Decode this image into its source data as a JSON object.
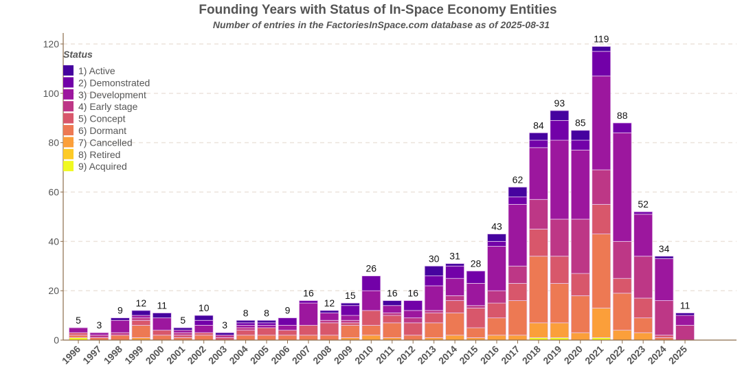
{
  "chart_data": {
    "type": "bar",
    "stacked": true,
    "title": "Founding Years with Status of In-Space Economy Entities",
    "subtitle": "Number of entries in the FactoriesInSpace.com database as of 2025-08-31",
    "xlabel": "",
    "ylabel": "",
    "ylim": [
      0,
      125
    ],
    "yticks": [
      0,
      20,
      40,
      60,
      80,
      100,
      120
    ],
    "grid": true,
    "legend": {
      "title": "Status",
      "placement": "top-left"
    },
    "categories": [
      "1996",
      "1997",
      "1998",
      "1999",
      "2000",
      "2001",
      "2002",
      "2003",
      "2004",
      "2005",
      "2006",
      "2007",
      "2008",
      "2009",
      "2010",
      "2011",
      "2012",
      "2013",
      "2014",
      "2015",
      "2016",
      "2017",
      "2018",
      "2019",
      "2020",
      "2021",
      "2022",
      "2023",
      "2024",
      "2025"
    ],
    "totals": [
      5,
      3,
      9,
      12,
      11,
      5,
      10,
      3,
      8,
      8,
      9,
      16,
      12,
      15,
      26,
      16,
      16,
      30,
      31,
      28,
      43,
      62,
      84,
      93,
      85,
      119,
      88,
      52,
      34,
      11
    ],
    "series": [
      {
        "name": "9)  Acquired",
        "color": "#f0f921",
        "values": [
          1,
          0,
          0,
          0,
          0,
          0,
          0,
          0,
          0,
          0,
          0,
          0,
          0,
          0,
          0,
          0,
          0,
          0,
          0,
          0,
          0,
          0,
          1,
          1,
          0,
          1,
          0,
          0,
          0,
          0
        ]
      },
      {
        "name": "8)  Retired",
        "color": "#fdca26",
        "values": [
          0,
          0,
          0,
          0,
          0,
          0,
          0,
          0,
          0,
          0,
          0,
          0,
          0,
          0,
          0,
          0,
          0,
          0,
          0,
          0,
          0,
          0,
          0,
          0,
          0,
          0,
          0,
          0,
          0,
          0
        ]
      },
      {
        "name": "7)  Cancelled",
        "color": "#fb9f3a",
        "values": [
          0,
          0,
          0,
          1,
          0,
          0,
          0,
          0,
          0,
          0,
          0,
          0,
          0,
          1,
          2,
          1,
          0,
          1,
          2,
          1,
          2,
          2,
          6,
          6,
          3,
          12,
          4,
          3,
          0,
          0
        ]
      },
      {
        "name": "6)  Dormant",
        "color": "#ed7953",
        "values": [
          1,
          1,
          2,
          5,
          2,
          1,
          2,
          0,
          2,
          2,
          2,
          2,
          2,
          5,
          4,
          6,
          2,
          6,
          9,
          4,
          7,
          14,
          27,
          16,
          15,
          30,
          15,
          6,
          1,
          0
        ]
      },
      {
        "name": "5)  Concept",
        "color": "#d8576b",
        "values": [
          1,
          0,
          0,
          2,
          2,
          1,
          1,
          1,
          2,
          3,
          2,
          4,
          5,
          1,
          6,
          3,
          5,
          4,
          5,
          8,
          6,
          7,
          11,
          11,
          9,
          12,
          6,
          8,
          1,
          0
        ]
      },
      {
        "name": "4)  Early stage",
        "color": "#bd3786",
        "values": [
          0,
          1,
          1,
          1,
          0,
          1,
          0,
          1,
          1,
          0,
          0,
          0,
          1,
          1,
          0,
          1,
          2,
          1,
          2,
          1,
          5,
          7,
          12,
          15,
          22,
          14,
          15,
          17,
          14,
          6
        ]
      },
      {
        "name": "3)  Development",
        "color": "#9c179e",
        "values": [
          2,
          1,
          5,
          1,
          5,
          1,
          3,
          0,
          1,
          1,
          2,
          9,
          3,
          2,
          8,
          3,
          3,
          10,
          7,
          9,
          18,
          25,
          21,
          32,
          28,
          38,
          44,
          17,
          17,
          4
        ]
      },
      {
        "name": "2)  Demonstrated",
        "color": "#7201a8",
        "values": [
          0,
          0,
          0,
          0,
          0,
          0,
          2,
          0,
          1,
          1,
          3,
          1,
          0,
          4,
          6,
          0,
          4,
          4,
          5,
          5,
          2,
          3,
          3,
          8,
          4,
          10,
          4,
          1,
          0,
          0
        ]
      },
      {
        "name": "1)  Active",
        "color": "#46039f",
        "values": [
          0,
          0,
          1,
          2,
          2,
          1,
          2,
          1,
          1,
          1,
          0,
          0,
          1,
          1,
          0,
          2,
          0,
          4,
          1,
          0,
          3,
          4,
          3,
          4,
          4,
          2,
          0,
          0,
          1,
          1
        ]
      }
    ]
  }
}
